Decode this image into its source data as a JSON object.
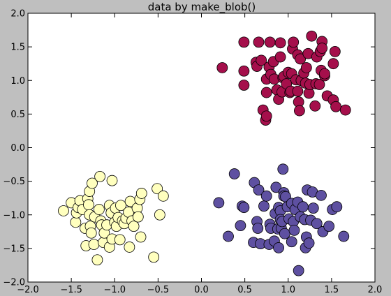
{
  "chart_data": {
    "type": "scatter",
    "title": "data by make_blob()",
    "xlabel": "",
    "ylabel": "",
    "xlim": [
      -2.0,
      2.0
    ],
    "ylim": [
      -2.0,
      2.0
    ],
    "xticks": [
      "−2.0",
      "−1.5",
      "−1.0",
      "−0.5",
      "0.0",
      "0.5",
      "1.0",
      "1.5",
      "2.0"
    ],
    "yticks": [
      "−2.0",
      "−1.5",
      "−1.0",
      "−0.5",
      "0.0",
      "0.5",
      "1.0",
      "1.5",
      "2.0"
    ],
    "grid": false,
    "series": [
      {
        "color": "#a50f4b",
        "points": [
          [
            0.24,
            1.19
          ],
          [
            0.49,
            1.57
          ],
          [
            0.49,
            1.14
          ],
          [
            0.49,
            0.93
          ],
          [
            0.63,
            1.27
          ],
          [
            0.64,
            1.21
          ],
          [
            0.66,
            1.57
          ],
          [
            0.69,
            1.3
          ],
          [
            0.71,
            0.56
          ],
          [
            0.74,
            0.41
          ],
          [
            0.75,
            0.47
          ],
          [
            0.75,
            1.02
          ],
          [
            0.75,
            0.82
          ],
          [
            0.78,
            1.2
          ],
          [
            0.79,
            1.57
          ],
          [
            0.8,
            1.09
          ],
          [
            0.83,
            1.28
          ],
          [
            0.84,
            1.02
          ],
          [
            0.87,
            0.86
          ],
          [
            0.89,
            0.72
          ],
          [
            0.91,
            1.56
          ],
          [
            0.91,
            1.35
          ],
          [
            0.93,
            0.83
          ],
          [
            0.94,
            1.04
          ],
          [
            0.95,
            1.06
          ],
          [
            0.98,
            0.95
          ],
          [
            1.0,
            1.12
          ],
          [
            1.02,
            0.82
          ],
          [
            1.03,
            0.84
          ],
          [
            1.04,
            1.1
          ],
          [
            1.05,
            1.47
          ],
          [
            1.06,
            1.57
          ],
          [
            1.09,
            1.01
          ],
          [
            1.11,
            1.38
          ],
          [
            1.11,
            0.84
          ],
          [
            1.12,
            0.68
          ],
          [
            1.13,
            0.55
          ],
          [
            1.14,
            1.32
          ],
          [
            1.15,
            1.0
          ],
          [
            1.18,
            1.11
          ],
          [
            1.2,
            0.96
          ],
          [
            1.21,
            1.19
          ],
          [
            1.23,
            1.4
          ],
          [
            1.24,
            0.81
          ],
          [
            1.25,
            0.94
          ],
          [
            1.27,
            1.66
          ],
          [
            1.31,
            0.62
          ],
          [
            1.32,
            0.95
          ],
          [
            1.33,
            1.35
          ],
          [
            1.36,
            0.94
          ],
          [
            1.37,
            1.43
          ],
          [
            1.38,
            1.15
          ],
          [
            1.39,
            1.58
          ],
          [
            1.39,
            1.48
          ],
          [
            1.42,
            1.07
          ],
          [
            1.42,
            1.1
          ],
          [
            1.45,
            0.77
          ],
          [
            1.52,
            1.25
          ],
          [
            1.52,
            0.71
          ],
          [
            1.54,
            1.43
          ],
          [
            1.55,
            0.61
          ],
          [
            1.66,
            0.56
          ]
        ]
      },
      {
        "color": "#5e50a1",
        "points": [
          [
            0.2,
            -0.82
          ],
          [
            0.31,
            -1.32
          ],
          [
            0.38,
            -0.39
          ],
          [
            0.45,
            -1.16
          ],
          [
            0.47,
            -0.87
          ],
          [
            0.49,
            -0.89
          ],
          [
            0.6,
            -1.41
          ],
          [
            0.61,
            -0.52
          ],
          [
            0.64,
            -1.1
          ],
          [
            0.65,
            -1.2
          ],
          [
            0.66,
            -0.63
          ],
          [
            0.68,
            -1.43
          ],
          [
            0.72,
            -0.87
          ],
          [
            0.75,
            -0.72
          ],
          [
            0.78,
            -1.44
          ],
          [
            0.79,
            -1.14
          ],
          [
            0.8,
            -1.2
          ],
          [
            0.84,
            -1.39
          ],
          [
            0.85,
            -0.98
          ],
          [
            0.86,
            -0.59
          ],
          [
            0.88,
            -1.21
          ],
          [
            0.89,
            -0.89
          ],
          [
            0.89,
            -1.49
          ],
          [
            0.91,
            -0.94
          ],
          [
            0.91,
            -1.07
          ],
          [
            0.92,
            -1.2
          ],
          [
            0.93,
            -1.1
          ],
          [
            0.94,
            -0.32
          ],
          [
            0.95,
            -0.67
          ],
          [
            0.95,
            -0.72
          ],
          [
            0.96,
            -1.28
          ],
          [
            0.97,
            -0.73
          ],
          [
            0.99,
            -0.88
          ],
          [
            1.01,
            -1.06
          ],
          [
            1.04,
            -0.83
          ],
          [
            1.04,
            -1.4
          ],
          [
            1.06,
            -1.1
          ],
          [
            1.07,
            -1.23
          ],
          [
            1.08,
            -0.92
          ],
          [
            1.11,
            -0.81
          ],
          [
            1.12,
            -1.83
          ],
          [
            1.14,
            -1.03
          ],
          [
            1.17,
            -0.88
          ],
          [
            1.19,
            -1.07
          ],
          [
            1.2,
            -1.49
          ],
          [
            1.21,
            -1.33
          ],
          [
            1.22,
            -0.63
          ],
          [
            1.24,
            -1.42
          ],
          [
            1.26,
            -1.08
          ],
          [
            1.28,
            -0.66
          ],
          [
            1.29,
            -0.9
          ],
          [
            1.33,
            -1.13
          ],
          [
            1.38,
            -0.71
          ],
          [
            1.4,
            -1.25
          ],
          [
            1.47,
            -1.17
          ],
          [
            1.51,
            -0.92
          ],
          [
            1.56,
            -0.88
          ],
          [
            1.64,
            -1.32
          ]
        ]
      },
      {
        "color": "#ffffbe",
        "points": [
          [
            -1.59,
            -0.94
          ],
          [
            -1.5,
            -0.82
          ],
          [
            -1.45,
            -1.11
          ],
          [
            -1.44,
            -0.97
          ],
          [
            -1.42,
            -0.89
          ],
          [
            -1.4,
            -0.79
          ],
          [
            -1.37,
            -0.92
          ],
          [
            -1.34,
            -1.2
          ],
          [
            -1.33,
            -1.46
          ],
          [
            -1.31,
            -0.76
          ],
          [
            -1.3,
            -0.85
          ],
          [
            -1.29,
            -0.65
          ],
          [
            -1.29,
            -1.0
          ],
          [
            -1.28,
            -1.17
          ],
          [
            -1.27,
            -1.27
          ],
          [
            -1.26,
            -0.53
          ],
          [
            -1.24,
            -1.44
          ],
          [
            -1.23,
            -1.03
          ],
          [
            -1.2,
            -1.67
          ],
          [
            -1.18,
            -0.92
          ],
          [
            -1.17,
            -0.43
          ],
          [
            -1.16,
            -1.09
          ],
          [
            -1.15,
            -1.15
          ],
          [
            -1.13,
            -1.41
          ],
          [
            -1.12,
            -1.27
          ],
          [
            -1.09,
            -1.15
          ],
          [
            -1.06,
            -1.48
          ],
          [
            -1.06,
            -0.86
          ],
          [
            -1.04,
            -0.97
          ],
          [
            -1.03,
            -0.49
          ],
          [
            -1.03,
            -1.36
          ],
          [
            -1.0,
            -1.11
          ],
          [
            -0.99,
            -0.9
          ],
          [
            -0.98,
            -1.17
          ],
          [
            -0.96,
            -1.04
          ],
          [
            -0.94,
            -1.37
          ],
          [
            -0.93,
            -0.86
          ],
          [
            -0.91,
            -1.09
          ],
          [
            -0.89,
            -1.13
          ],
          [
            -0.87,
            -1.05
          ],
          [
            -0.84,
            -0.96
          ],
          [
            -0.83,
            -1.48
          ],
          [
            -0.82,
            -0.8
          ],
          [
            -0.8,
            -1.09
          ],
          [
            -0.78,
            -1.17
          ],
          [
            -0.74,
            -0.9
          ],
          [
            -0.73,
            -1.03
          ],
          [
            -0.71,
            -0.77
          ],
          [
            -0.7,
            -1.33
          ],
          [
            -0.69,
            -0.68
          ],
          [
            -0.55,
            -1.63
          ],
          [
            -0.51,
            -0.61
          ],
          [
            -0.48,
            -1.0
          ],
          [
            -0.44,
            -0.72
          ]
        ]
      }
    ]
  }
}
